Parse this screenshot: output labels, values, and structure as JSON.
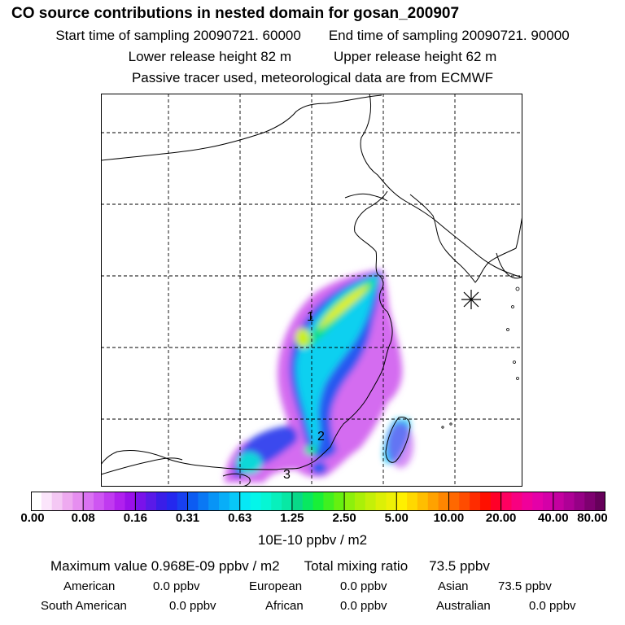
{
  "header": {
    "title": "CO  source contributions in nested domain for gosan_200907",
    "start_label": "Start time of sampling 20090721. 60000",
    "end_label": "End time of sampling 20090721. 90000",
    "lower_label": "Lower release height   82 m",
    "upper_label": "Upper release height   62 m",
    "tracer_note": "Passive tracer used, meteorological data are from ECMWF"
  },
  "map": {
    "labels": [
      "1",
      "2",
      "3"
    ],
    "marker": "asterisk-icon",
    "coast_color": "#000000",
    "grid_style": "dashed"
  },
  "colorbar": {
    "ticks": [
      "0.00",
      "0.08",
      "0.16",
      "0.31",
      "0.63",
      "1.25",
      "2.50",
      "5.00",
      "10.00",
      "20.00",
      "40.00",
      "80.00"
    ],
    "colors": [
      [
        "#ffffff",
        "#fbe5fb",
        "#f4c8f4",
        "#eeaaf0",
        "#e68ef0"
      ],
      [
        "#da72f2",
        "#ce55f2",
        "#c03af0",
        "#b020ee",
        "#9a10ea"
      ],
      [
        "#7a12ea",
        "#5a1ae8",
        "#3a1ee8",
        "#2428ee",
        "#1840f0"
      ],
      [
        "#0c5cf2",
        "#0a78f4",
        "#0894f6",
        "#08aef8",
        "#08c8f8"
      ],
      [
        "#06e8f6",
        "#04f6ea",
        "#06f6d4",
        "#08f0bc",
        "#08e8a4"
      ],
      [
        "#08d888",
        "#08e860",
        "#18f038",
        "#40f020",
        "#66f010"
      ],
      [
        "#8cf00c",
        "#aaf008",
        "#c4f008",
        "#dcf006",
        "#eef006"
      ],
      [
        "#fff000",
        "#ffd800",
        "#ffbe00",
        "#ffa200",
        "#ff8600"
      ],
      [
        "#ff6800",
        "#ff4c00",
        "#ff2c00",
        "#ff1000",
        "#ff0028"
      ],
      [
        "#ff0060",
        "#f80080",
        "#f0009a",
        "#e400a8",
        "#d400a8"
      ],
      [
        "#c400a0",
        "#ae0096",
        "#960086",
        "#7e0070",
        "#66005a"
      ]
    ],
    "unit": "10E-10 ppbv / m2"
  },
  "summary": {
    "max_label": "Maximum value  0.968E-09 ppbv / m2",
    "total_label": "Total mixing ratio",
    "total_value": "73.5 ppbv"
  },
  "contributions": [
    {
      "name": "American",
      "value": "0.0 ppbv"
    },
    {
      "name": "European",
      "value": "0.0 ppbv"
    },
    {
      "name": "Asian",
      "value": "73.5 ppbv"
    },
    {
      "name": "South American",
      "value": "0.0 ppbv"
    },
    {
      "name": "African",
      "value": "0.0 ppbv"
    },
    {
      "name": "Australian",
      "value": "0.0 ppbv"
    }
  ]
}
